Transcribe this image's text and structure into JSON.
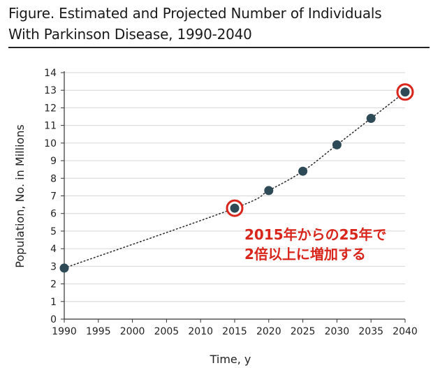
{
  "header": {
    "title_line1": "Figure. Estimated and Projected Number of Individuals",
    "title_line2": "With Parkinson Disease, 1990-2040"
  },
  "colors": {
    "point": "#2e4a56",
    "trend": "#333333",
    "highlight": "#d9261c",
    "grid": "#d6d6d6",
    "axis": "#333333"
  },
  "chart_data": {
    "type": "scatter",
    "title": "Figure. Estimated and Projected Number of Individuals With Parkinson Disease, 1990-2040",
    "xlabel": "Time, y",
    "ylabel": "Population, No. in Millions",
    "xlim": [
      1990,
      2040
    ],
    "ylim": [
      0,
      14
    ],
    "x_ticks": [
      1990,
      1995,
      2000,
      2005,
      2010,
      2015,
      2020,
      2025,
      2030,
      2035,
      2040
    ],
    "y_ticks": [
      0,
      1,
      2,
      3,
      4,
      5,
      6,
      7,
      8,
      9,
      10,
      11,
      12,
      13,
      14
    ],
    "grid": "horizontal",
    "points": [
      {
        "x": 1990,
        "y": 2.9
      },
      {
        "x": 2015,
        "y": 6.3
      },
      {
        "x": 2020,
        "y": 7.3
      },
      {
        "x": 2025,
        "y": 8.4
      },
      {
        "x": 2030,
        "y": 9.9
      },
      {
        "x": 2035,
        "y": 11.4
      },
      {
        "x": 2040,
        "y": 12.9
      }
    ],
    "trend_line": "dotted",
    "highlighted_points": [
      2015,
      2040
    ],
    "annotation": {
      "line1": "2015年からの25年で",
      "line2": "2倍以上に増加する"
    }
  }
}
